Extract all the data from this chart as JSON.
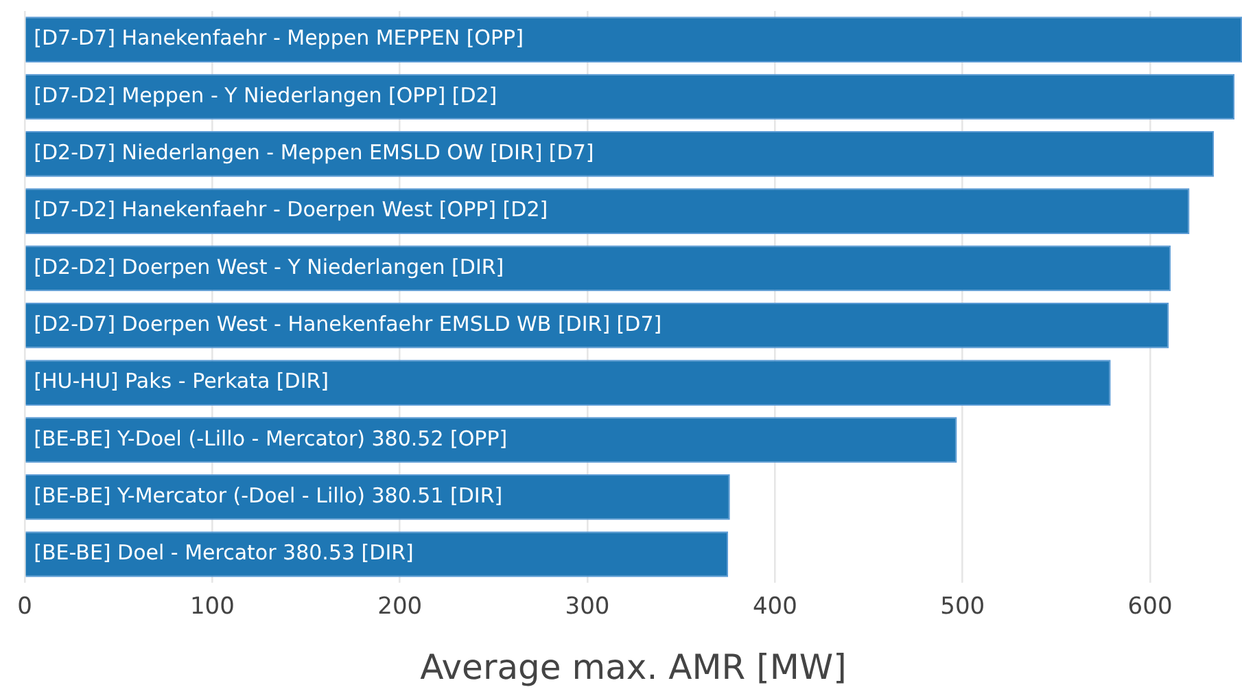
{
  "chart_data": {
    "type": "bar",
    "orientation": "horizontal",
    "xlabel": "Average max. AMR [MW]",
    "categories": [
      "[D7-D7] Hanekenfaehr - Meppen MEPPEN [OPP]",
      "[D7-D2] Meppen - Y Niederlangen [OPP] [D2]",
      "[D2-D7] Niederlangen - Meppen EMSLD OW [DIR] [D7]",
      "[D7-D2] Hanekenfaehr - Doerpen West [OPP] [D2]",
      "[D2-D2] Doerpen West - Y Niederlangen [DIR]",
      "[D2-D7] Doerpen West - Hanekenfaehr EMSLD WB [DIR] [D7]",
      "[HU-HU] Paks - Perkata [DIR]",
      "[BE-BE] Y-Doel (-Lillo - Mercator) 380.52 [OPP]",
      "[BE-BE] Y-Mercator (-Doel - Lillo) 380.51 [DIR]",
      "[BE-BE] Doel - Mercator 380.53 [DIR]"
    ],
    "values": [
      649,
      645,
      634,
      621,
      611,
      610,
      579,
      497,
      376,
      375
    ],
    "color": "#1f77b4",
    "xlim": [
      0,
      649
    ],
    "xticks": [
      0,
      100,
      200,
      300,
      400,
      500,
      600
    ],
    "grid": "x"
  }
}
